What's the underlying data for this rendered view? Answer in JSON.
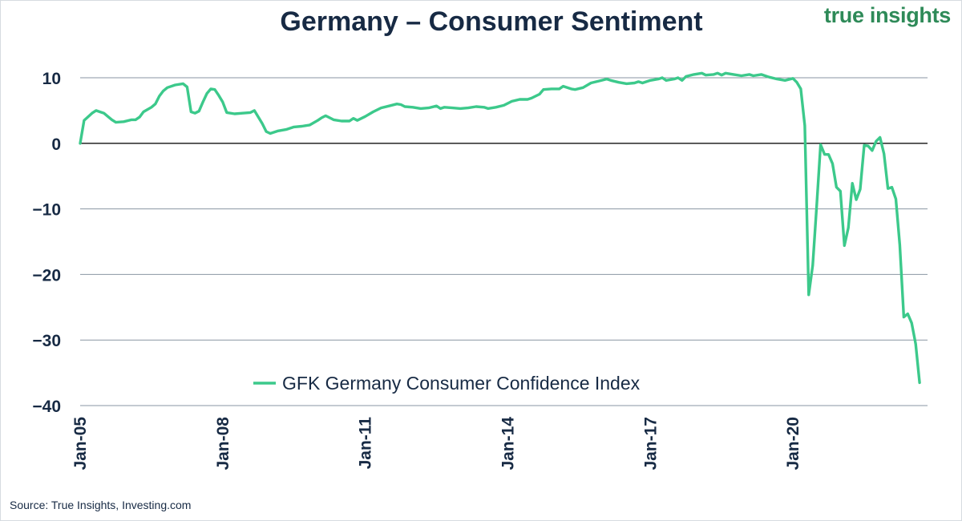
{
  "title": "Germany – Consumer Sentiment",
  "brand": {
    "word1": "true",
    "word2": "insights"
  },
  "source": "Source: True Insights, Investing.com",
  "colors": {
    "line": "#3cc98b",
    "text": "#172a44",
    "grid": "#8a96a3",
    "zero": "#111111",
    "brand": "#2e8a58"
  },
  "chart_data": {
    "type": "line",
    "title": "Germany – Consumer Sentiment",
    "xlabel": "",
    "ylabel": "",
    "ylim": [
      -40,
      10
    ],
    "yticks": [
      10,
      0,
      -10,
      -20,
      -30,
      -40
    ],
    "ytick_labels": [
      "10",
      "0",
      "−10",
      "−20",
      "−30",
      "−40"
    ],
    "xticks": [
      "2005-01",
      "2008-01",
      "2011-01",
      "2014-01",
      "2017-01",
      "2020-01"
    ],
    "xtick_labels": [
      "Jan-05",
      "Jan-08",
      "Jan-11",
      "Jan-14",
      "Jan-17",
      "Jan-20"
    ],
    "xlim": [
      "2005-01",
      "2022-11"
    ],
    "grid": "horizontal",
    "legend": "bottom-center",
    "series": [
      {
        "name": "GFK Germany Consumer Confidence Index",
        "points": [
          [
            "2005-01",
            0.0
          ],
          [
            "2005-02",
            3.5
          ],
          [
            "2005-04",
            4.6
          ],
          [
            "2005-05",
            5.0
          ],
          [
            "2005-07",
            4.6
          ],
          [
            "2005-09",
            3.6
          ],
          [
            "2005-10",
            3.2
          ],
          [
            "2005-12",
            3.3
          ],
          [
            "2006-02",
            3.6
          ],
          [
            "2006-03",
            3.6
          ],
          [
            "2006-04",
            4.0
          ],
          [
            "2006-05",
            4.8
          ],
          [
            "2006-07",
            5.5
          ],
          [
            "2006-08",
            6.0
          ],
          [
            "2006-09",
            7.2
          ],
          [
            "2006-10",
            8.0
          ],
          [
            "2006-11",
            8.5
          ],
          [
            "2007-01",
            8.9
          ],
          [
            "2007-03",
            9.1
          ],
          [
            "2007-04",
            8.6
          ],
          [
            "2007-05",
            4.8
          ],
          [
            "2007-06",
            4.6
          ],
          [
            "2007-07",
            4.9
          ],
          [
            "2007-08",
            6.3
          ],
          [
            "2007-09",
            7.6
          ],
          [
            "2007-10",
            8.3
          ],
          [
            "2007-11",
            8.2
          ],
          [
            "2007-12",
            7.3
          ],
          [
            "2008-01",
            6.3
          ],
          [
            "2008-02",
            4.7
          ],
          [
            "2008-04",
            4.5
          ],
          [
            "2008-06",
            4.6
          ],
          [
            "2008-08",
            4.7
          ],
          [
            "2008-09",
            5.0
          ],
          [
            "2008-10",
            4.0
          ],
          [
            "2008-11",
            3.0
          ],
          [
            "2008-12",
            1.8
          ],
          [
            "2009-01",
            1.5
          ],
          [
            "2009-03",
            1.9
          ],
          [
            "2009-05",
            2.1
          ],
          [
            "2009-07",
            2.5
          ],
          [
            "2009-09",
            2.6
          ],
          [
            "2009-11",
            2.8
          ],
          [
            "2010-01",
            3.5
          ],
          [
            "2010-02",
            3.9
          ],
          [
            "2010-03",
            4.2
          ],
          [
            "2010-04",
            3.9
          ],
          [
            "2010-05",
            3.6
          ],
          [
            "2010-07",
            3.4
          ],
          [
            "2010-09",
            3.4
          ],
          [
            "2010-10",
            3.8
          ],
          [
            "2010-11",
            3.5
          ],
          [
            "2011-01",
            4.1
          ],
          [
            "2011-03",
            4.8
          ],
          [
            "2011-05",
            5.4
          ],
          [
            "2011-07",
            5.7
          ],
          [
            "2011-09",
            6.0
          ],
          [
            "2011-10",
            5.9
          ],
          [
            "2011-11",
            5.6
          ],
          [
            "2012-01",
            5.5
          ],
          [
            "2012-03",
            5.3
          ],
          [
            "2012-05",
            5.4
          ],
          [
            "2012-07",
            5.7
          ],
          [
            "2012-08",
            5.3
          ],
          [
            "2012-09",
            5.5
          ],
          [
            "2012-11",
            5.4
          ],
          [
            "2013-01",
            5.3
          ],
          [
            "2013-03",
            5.4
          ],
          [
            "2013-05",
            5.6
          ],
          [
            "2013-07",
            5.5
          ],
          [
            "2013-08",
            5.3
          ],
          [
            "2013-10",
            5.5
          ],
          [
            "2013-12",
            5.8
          ],
          [
            "2014-02",
            6.4
          ],
          [
            "2014-04",
            6.7
          ],
          [
            "2014-06",
            6.7
          ],
          [
            "2014-07",
            6.9
          ],
          [
            "2014-09",
            7.5
          ],
          [
            "2014-10",
            8.2
          ],
          [
            "2014-12",
            8.3
          ],
          [
            "2015-02",
            8.3
          ],
          [
            "2015-03",
            8.7
          ],
          [
            "2015-05",
            8.3
          ],
          [
            "2015-06",
            8.2
          ],
          [
            "2015-08",
            8.5
          ],
          [
            "2015-10",
            9.2
          ],
          [
            "2015-12",
            9.5
          ],
          [
            "2016-02",
            9.8
          ],
          [
            "2016-03",
            9.6
          ],
          [
            "2016-05",
            9.3
          ],
          [
            "2016-07",
            9.1
          ],
          [
            "2016-09",
            9.2
          ],
          [
            "2016-10",
            9.4
          ],
          [
            "2016-11",
            9.2
          ],
          [
            "2017-01",
            9.6
          ],
          [
            "2017-03",
            9.8
          ],
          [
            "2017-04",
            10.0
          ],
          [
            "2017-05",
            9.6
          ],
          [
            "2017-07",
            9.8
          ],
          [
            "2017-08",
            10.0
          ],
          [
            "2017-09",
            9.6
          ],
          [
            "2017-10",
            10.2
          ],
          [
            "2017-12",
            10.5
          ],
          [
            "2018-02",
            10.7
          ],
          [
            "2018-03",
            10.4
          ],
          [
            "2018-05",
            10.5
          ],
          [
            "2018-06",
            10.7
          ],
          [
            "2018-07",
            10.4
          ],
          [
            "2018-08",
            10.7
          ],
          [
            "2018-10",
            10.5
          ],
          [
            "2018-12",
            10.3
          ],
          [
            "2019-02",
            10.5
          ],
          [
            "2019-03",
            10.3
          ],
          [
            "2019-05",
            10.5
          ],
          [
            "2019-07",
            10.1
          ],
          [
            "2019-09",
            9.8
          ],
          [
            "2019-11",
            9.6
          ],
          [
            "2020-01",
            9.9
          ],
          [
            "2020-02",
            9.3
          ],
          [
            "2020-03",
            8.3
          ],
          [
            "2020-04",
            2.7
          ],
          [
            "2020-05",
            -23.1
          ],
          [
            "2020-06",
            -18.6
          ],
          [
            "2020-07",
            -9.6
          ],
          [
            "2020-08",
            -0.2
          ],
          [
            "2020-09",
            -1.7
          ],
          [
            "2020-10",
            -1.7
          ],
          [
            "2020-11",
            -3.1
          ],
          [
            "2020-12",
            -6.7
          ],
          [
            "2021-01",
            -7.3
          ],
          [
            "2021-02",
            -15.6
          ],
          [
            "2021-03",
            -12.9
          ],
          [
            "2021-04",
            -6.1
          ],
          [
            "2021-05",
            -8.6
          ],
          [
            "2021-06",
            -7.0
          ],
          [
            "2021-07",
            -0.3
          ],
          [
            "2021-08",
            -0.4
          ],
          [
            "2021-09",
            -1.1
          ],
          [
            "2021-10",
            0.3
          ],
          [
            "2021-11",
            0.9
          ],
          [
            "2021-12",
            -1.6
          ],
          [
            "2022-01",
            -6.9
          ],
          [
            "2022-02",
            -6.7
          ],
          [
            "2022-03",
            -8.5
          ],
          [
            "2022-04",
            -15.5
          ],
          [
            "2022-05",
            -26.5
          ],
          [
            "2022-06",
            -26.0
          ],
          [
            "2022-07",
            -27.4
          ],
          [
            "2022-08",
            -30.6
          ],
          [
            "2022-09",
            -36.5
          ]
        ]
      }
    ]
  }
}
